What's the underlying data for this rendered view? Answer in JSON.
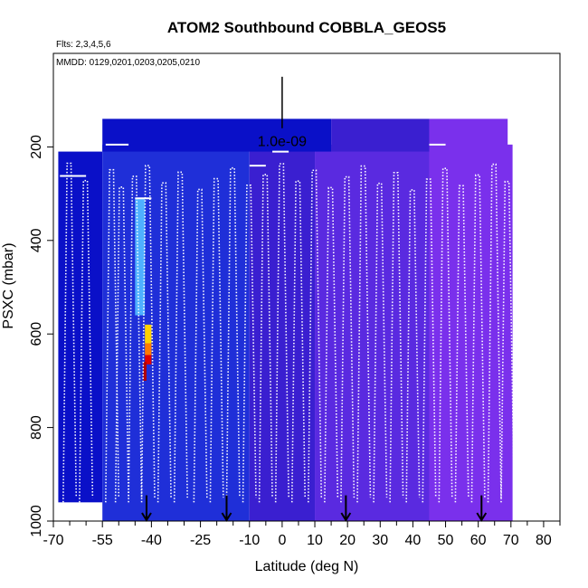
{
  "chart_data": {
    "type": "heatmap",
    "title": "ATOM2 Southbound COBBLA_GEOS5",
    "flights_text": "Flts: 2,3,4,5,6",
    "dates_text": "MMDD: 0129,0201,0203,0205,0210",
    "xlabel": "Latitude (deg N)",
    "ylabel": "PSXC (mbar)",
    "xlim": [
      -70,
      85
    ],
    "ylim": [
      1000,
      0
    ],
    "xticks": [
      -70,
      -55,
      -40,
      -25,
      -10,
      0,
      10,
      20,
      30,
      40,
      50,
      60,
      70,
      80
    ],
    "x_minor_ticks": [
      -65,
      -60,
      -50,
      -45,
      -35,
      -30,
      -20,
      -15,
      -5,
      5,
      15,
      25,
      35,
      45,
      55,
      65,
      75,
      85
    ],
    "yticks": [
      200,
      400,
      600,
      800,
      1000
    ],
    "scale_bar_label": "1.0e-09",
    "scale_bar_position": {
      "lat": 0,
      "p_top": 50,
      "p_bottom": 160
    },
    "colors": {
      "deep_blue": "#0a10c8",
      "mid_blue": "#1f2fd8",
      "indigo": "#3a1fd0",
      "violet": "#5a2ae0",
      "bright_violet": "#7a30ec",
      "cyan": "#4fb0ff",
      "yellow": "#ffd200",
      "orange": "#ff7a00",
      "red": "#e00000",
      "dark_red": "#b00000",
      "track": "#ffffff",
      "arrow": "#000000"
    },
    "regions": [
      {
        "lat": [
          -68.5,
          -55
        ],
        "p": [
          210,
          960
        ],
        "color": "deep_blue"
      },
      {
        "lat": [
          -55,
          -10
        ],
        "p": [
          195,
          1000
        ],
        "color": "mid_blue"
      },
      {
        "lat": [
          -10,
          10
        ],
        "p": [
          195,
          1000
        ],
        "color": "indigo"
      },
      {
        "lat": [
          10,
          45
        ],
        "p": [
          195,
          1000
        ],
        "color": "violet"
      },
      {
        "lat": [
          45,
          70.5
        ],
        "p": [
          195,
          1000
        ],
        "color": "bright_violet"
      },
      {
        "lat": [
          -55,
          15
        ],
        "p": [
          140,
          210
        ],
        "color": "deep_blue"
      },
      {
        "lat": [
          15,
          45
        ],
        "p": [
          140,
          210
        ],
        "color": "indigo"
      },
      {
        "lat": [
          45,
          69
        ],
        "p": [
          140,
          210
        ],
        "color": "bright_violet"
      },
      {
        "lat": [
          -45,
          -42
        ],
        "p": [
          310,
          560
        ],
        "color": "cyan"
      },
      {
        "lat": [
          -42,
          -40
        ],
        "p": [
          580,
          620
        ],
        "color": "yellow"
      },
      {
        "lat": [
          -42,
          -40
        ],
        "p": [
          620,
          645
        ],
        "color": "orange"
      },
      {
        "lat": [
          -42,
          -40
        ],
        "p": [
          645,
          665
        ],
        "color": "red"
      },
      {
        "lat": [
          -42.5,
          -41.5
        ],
        "p": [
          660,
          700
        ],
        "color": "dark_red"
      }
    ],
    "arrows_lat": [
      -41.5,
      -17,
      19.5,
      61
    ]
  }
}
